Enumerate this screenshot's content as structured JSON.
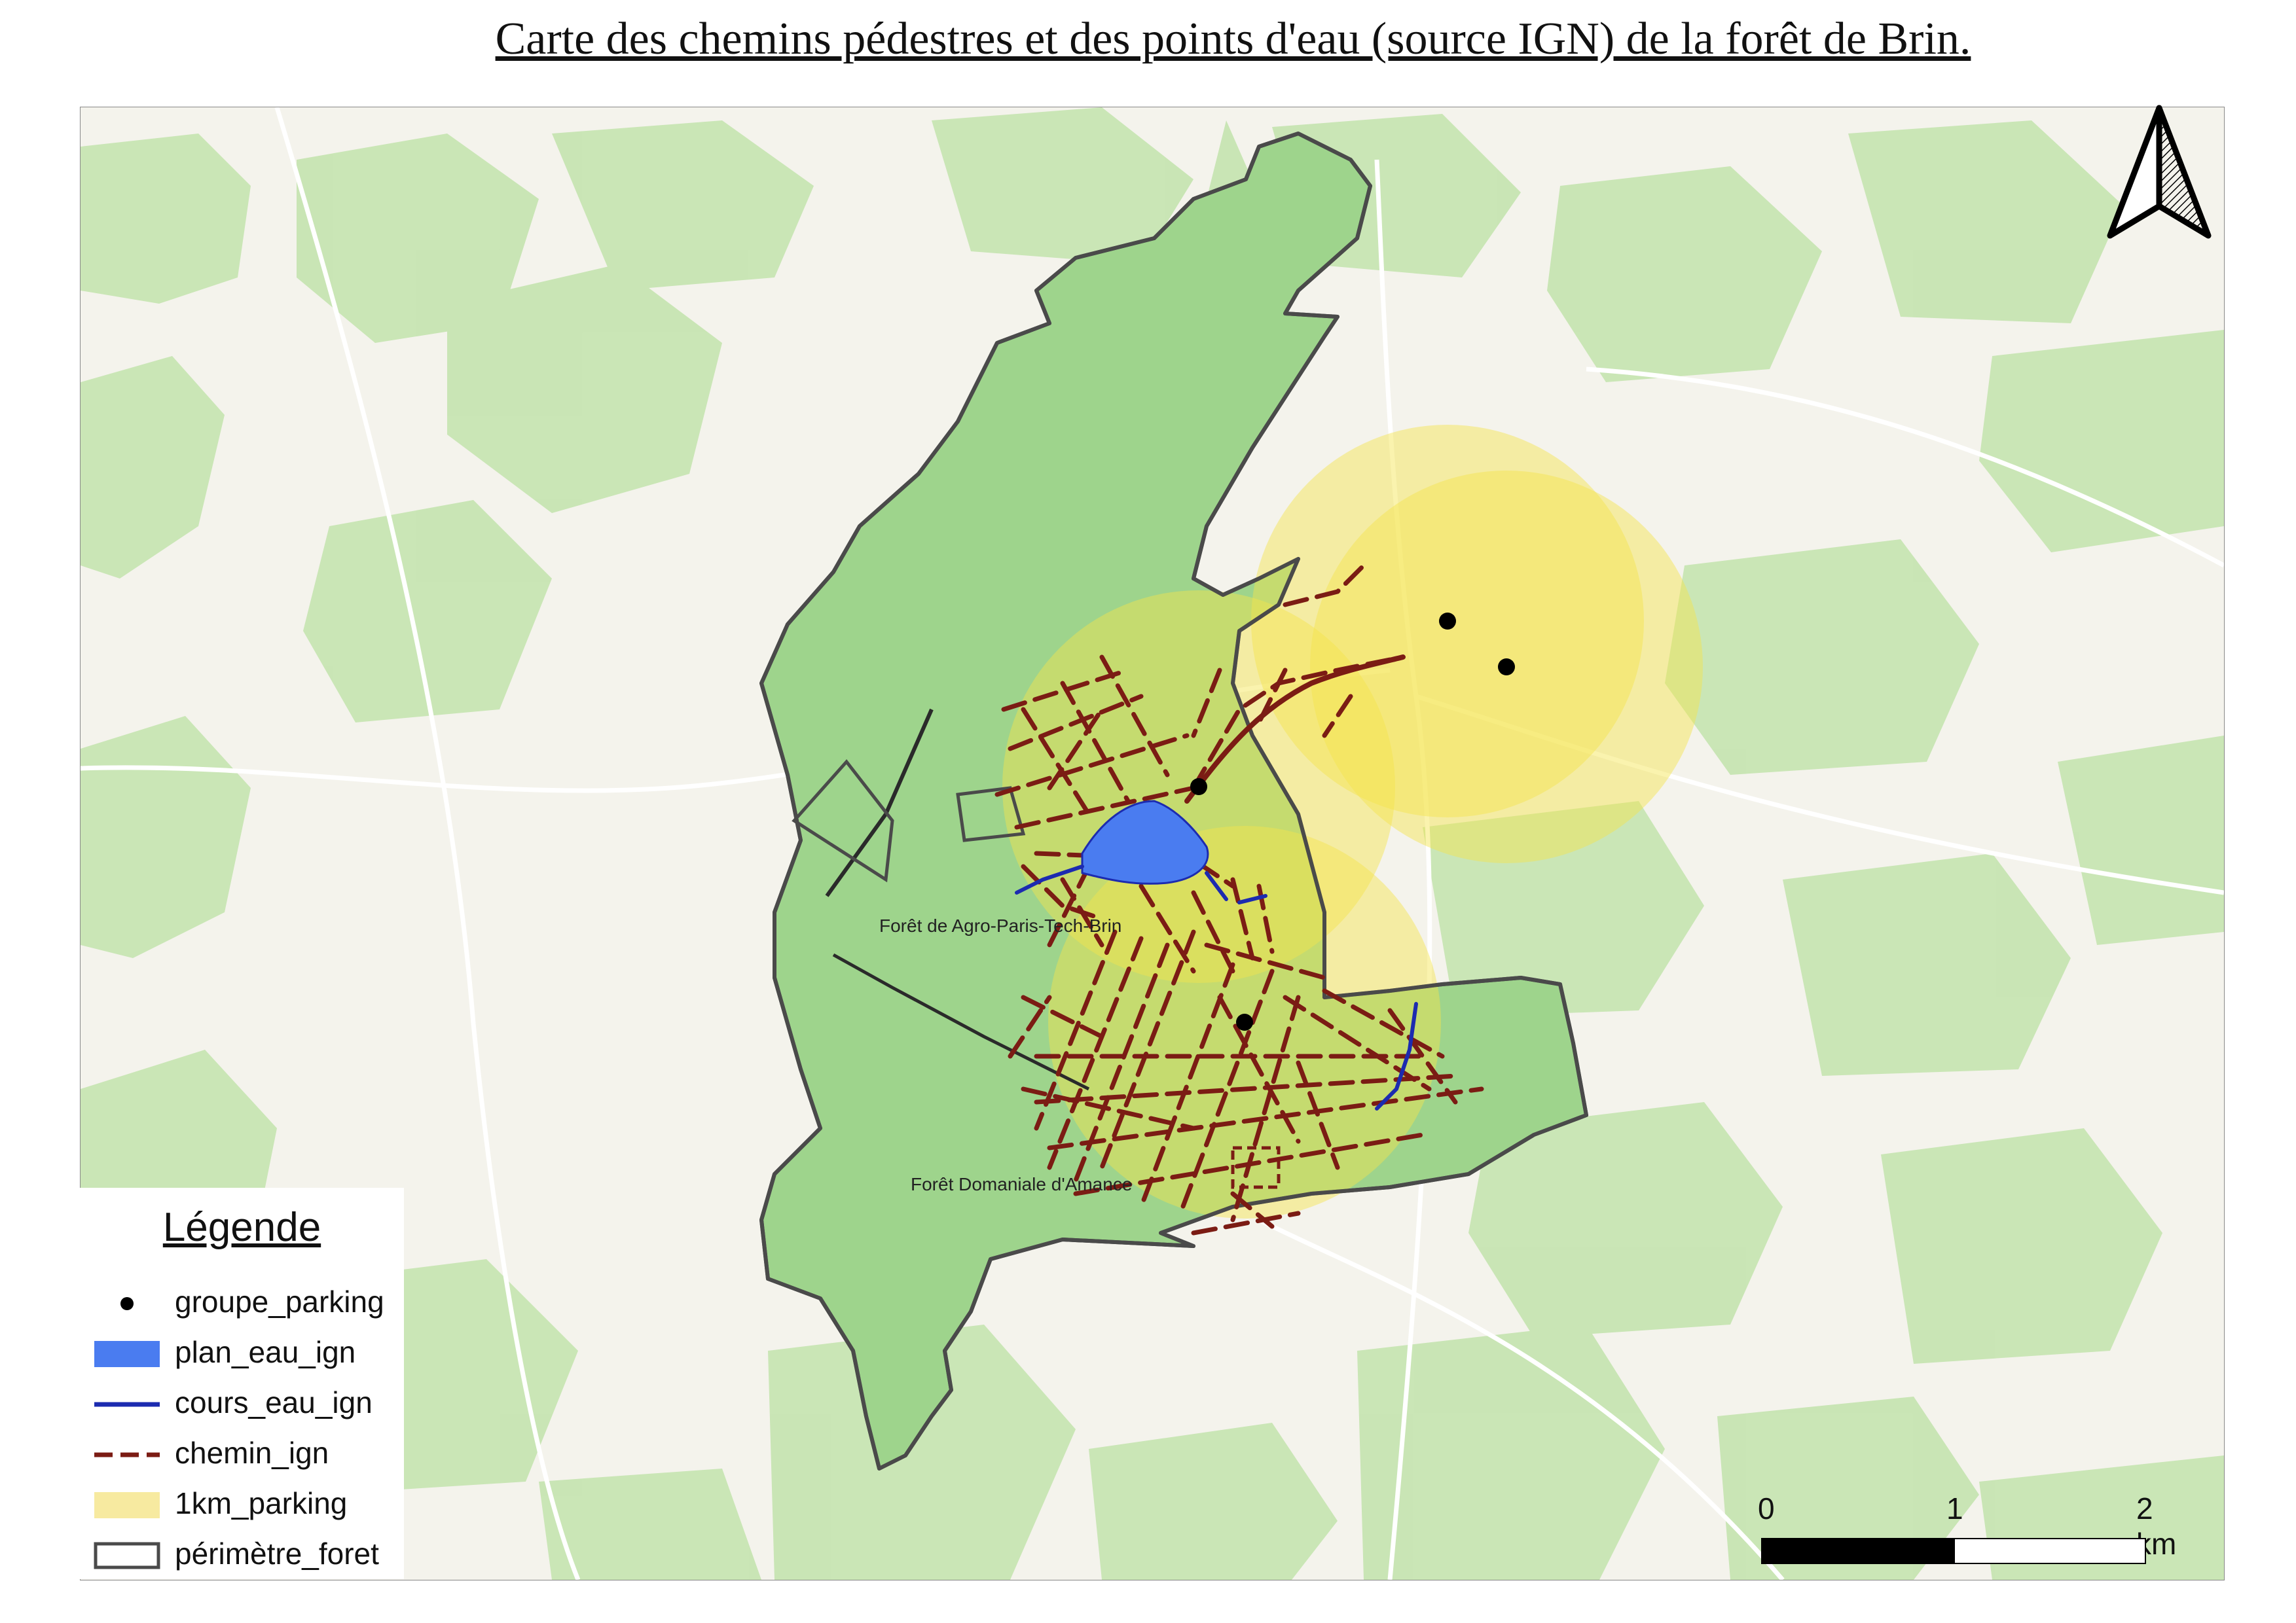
{
  "title": "Carte des chemins pédestres et des points d'eau (source IGN) de la forêt de Brin.",
  "map": {
    "labels": [
      {
        "text": "Forêt de Agro-Paris-Tech-Brin"
      },
      {
        "text": "Forêt Domaniale d'Amance"
      }
    ],
    "colors": {
      "forest": "#9ed48c",
      "background_forest": "#c7e5b3",
      "buffer": "#f4e54c",
      "path": "#7b1c14",
      "water_body": "#4a7cf0",
      "stream": "#1c2bb0",
      "perimeter": "#4a4a4a",
      "parking": "#000000"
    }
  },
  "legend": {
    "title": "Légende",
    "items": [
      {
        "label": "groupe_parking",
        "symbol": "point",
        "color": "#000000"
      },
      {
        "label": "plan_eau_ign",
        "symbol": "fill",
        "color": "#4a7cf0"
      },
      {
        "label": "cours_eau_ign",
        "symbol": "line",
        "color": "#1c2bb0"
      },
      {
        "label": "chemin_ign",
        "symbol": "dashed-line",
        "color": "#7b1c14"
      },
      {
        "label": "1km_parking",
        "symbol": "fill",
        "color": "#f7eaa0"
      },
      {
        "label": "périmètre_foret",
        "symbol": "outline",
        "color": "#4a4a4a"
      }
    ]
  },
  "scale_bar": {
    "ticks": [
      "0",
      "1",
      "2 km"
    ]
  },
  "north_arrow": {
    "icon": "north-arrow-icon"
  }
}
